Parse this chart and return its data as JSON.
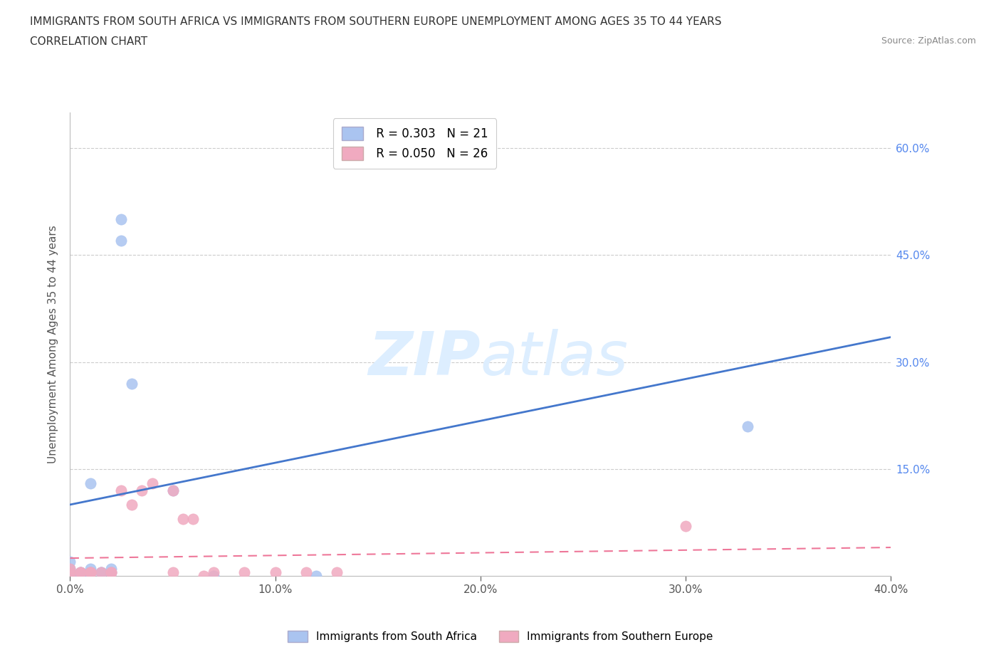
{
  "title_line1": "IMMIGRANTS FROM SOUTH AFRICA VS IMMIGRANTS FROM SOUTHERN EUROPE UNEMPLOYMENT AMONG AGES 35 TO 44 YEARS",
  "title_line2": "CORRELATION CHART",
  "source_text": "Source: ZipAtlas.com",
  "ylabel": "Unemployment Among Ages 35 to 44 years",
  "xlim": [
    0.0,
    0.4
  ],
  "ylim": [
    0.0,
    0.65
  ],
  "xtick_labels": [
    "0.0%",
    "10.0%",
    "20.0%",
    "30.0%",
    "40.0%"
  ],
  "xtick_values": [
    0.0,
    0.1,
    0.2,
    0.3,
    0.4
  ],
  "ytick_values": [
    0.15,
    0.3,
    0.45,
    0.6
  ],
  "ytick_labels": [
    "15.0%",
    "30.0%",
    "45.0%",
    "60.0%"
  ],
  "grid_color": "#cccccc",
  "south_africa_color": "#aac4f0",
  "southern_europe_color": "#f0aac0",
  "south_africa_R": 0.303,
  "south_africa_N": 21,
  "southern_europe_R": 0.05,
  "southern_europe_N": 26,
  "south_africa_line_color": "#4477cc",
  "southern_europe_line_color": "#ee7799",
  "watermark_color": "#ddeeff",
  "south_africa_x": [
    0.0,
    0.0,
    0.0,
    0.0,
    0.005,
    0.005,
    0.005,
    0.01,
    0.01,
    0.01,
    0.015,
    0.015,
    0.02,
    0.02,
    0.025,
    0.025,
    0.03,
    0.05,
    0.07,
    0.12,
    0.33
  ],
  "south_africa_y": [
    0.0,
    0.005,
    0.01,
    0.02,
    0.0,
    0.005,
    0.005,
    0.01,
    0.005,
    0.13,
    0.005,
    0.005,
    0.005,
    0.01,
    0.47,
    0.5,
    0.27,
    0.12,
    0.0,
    0.0,
    0.21
  ],
  "southern_europe_x": [
    0.0,
    0.0,
    0.0,
    0.005,
    0.005,
    0.01,
    0.01,
    0.01,
    0.015,
    0.02,
    0.02,
    0.025,
    0.03,
    0.035,
    0.04,
    0.05,
    0.05,
    0.055,
    0.06,
    0.065,
    0.07,
    0.085,
    0.1,
    0.115,
    0.13,
    0.3
  ],
  "southern_europe_y": [
    0.0,
    0.005,
    0.01,
    0.005,
    0.005,
    0.005,
    0.005,
    0.005,
    0.005,
    0.005,
    0.005,
    0.12,
    0.1,
    0.12,
    0.13,
    0.12,
    0.005,
    0.08,
    0.08,
    0.0,
    0.005,
    0.005,
    0.005,
    0.005,
    0.005,
    0.07
  ],
  "sa_line_x": [
    0.0,
    0.4
  ],
  "sa_line_y": [
    0.1,
    0.335
  ],
  "se_line_x": [
    0.0,
    0.4
  ],
  "se_line_y": [
    0.025,
    0.04
  ]
}
